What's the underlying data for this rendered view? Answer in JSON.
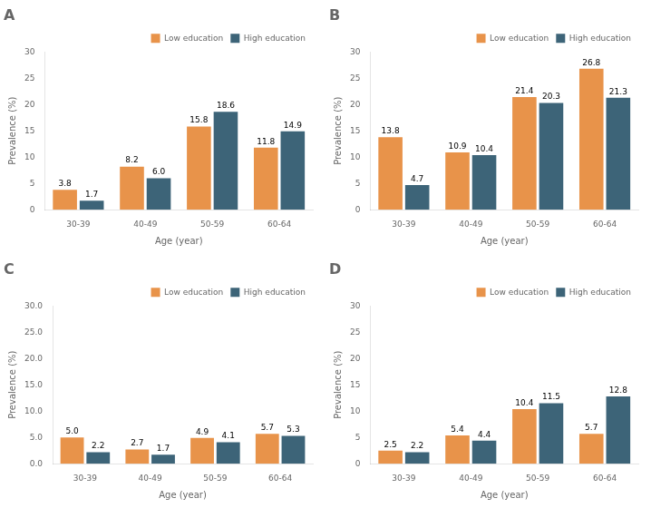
{
  "chart_data": [
    {
      "type": "bar",
      "title": "A",
      "categories": [
        "30-39",
        "40-49",
        "50-59",
        "60-64"
      ],
      "series": [
        {
          "name": "Low education",
          "color": "#E8934A",
          "values": [
            3.8,
            8.2,
            15.8,
            11.8
          ],
          "value_labels": [
            "3.8",
            "8.2",
            "15.8",
            "11.8"
          ]
        },
        {
          "name": "High education",
          "color": "#3D6478",
          "values": [
            1.7,
            6.0,
            18.6,
            14.9
          ],
          "value_labels": [
            "1.7",
            "6.0",
            "18.6",
            "14.9"
          ]
        }
      ],
      "xlabel": "Age (year)",
      "ylabel": "Prevalence (%)",
      "ylim": [
        0,
        30
      ],
      "yticks": [
        0,
        5,
        10,
        15,
        20,
        25,
        30
      ],
      "grid": false,
      "legend": "upper right",
      "data_labels": true
    },
    {
      "type": "bar",
      "title": "B",
      "categories": [
        "30-39",
        "40-49",
        "50-59",
        "60-64"
      ],
      "series": [
        {
          "name": "Low education",
          "color": "#E8934A",
          "values": [
            13.8,
            10.9,
            21.4,
            26.8
          ],
          "value_labels": [
            "13.8",
            "10.9",
            "21.4",
            "26.8"
          ]
        },
        {
          "name": "High education",
          "color": "#3D6478",
          "values": [
            4.7,
            10.4,
            20.3,
            21.3
          ],
          "value_labels": [
            "4.7",
            "10.4",
            "20.3",
            "21.3"
          ]
        }
      ],
      "xlabel": "Age (year)",
      "ylabel": "Prevalence (%)",
      "ylim": [
        0,
        30
      ],
      "yticks": [
        0,
        5,
        10,
        15,
        20,
        25,
        30
      ],
      "grid": false,
      "legend": "upper right",
      "data_labels": true
    },
    {
      "type": "bar",
      "title": "C",
      "categories": [
        "30-39",
        "40-49",
        "50-59",
        "60-64"
      ],
      "series": [
        {
          "name": "Low education",
          "color": "#E8934A",
          "values": [
            5.0,
            2.7,
            4.9,
            5.7
          ],
          "value_labels": [
            "5.0",
            "2.7",
            "4.9",
            "5.7"
          ]
        },
        {
          "name": "High education",
          "color": "#3D6478",
          "values": [
            2.2,
            1.7,
            4.1,
            5.3
          ],
          "value_labels": [
            "2.2",
            "1.7",
            "4.1",
            "5.3"
          ]
        }
      ],
      "xlabel": "Age (year)",
      "ylabel": "Prevalence (%)",
      "ylim": [
        0,
        30.0
      ],
      "yticks": [
        {
          "value": 0,
          "label": "0.0"
        },
        {
          "value": 5,
          "label": "5.0"
        },
        {
          "value": 10,
          "label": "10.0"
        },
        {
          "value": 15,
          "label": "15.0"
        },
        {
          "value": 20,
          "label": "20.0"
        },
        {
          "value": 25,
          "label": "25.0"
        },
        {
          "value": 30,
          "label": "30.0"
        }
      ],
      "grid": false,
      "legend": "upper right",
      "data_labels": true
    },
    {
      "type": "bar",
      "title": "D",
      "categories": [
        "30-39",
        "40-49",
        "50-59",
        "60-64"
      ],
      "series": [
        {
          "name": "Low education",
          "color": "#E8934A",
          "values": [
            2.5,
            5.4,
            10.4,
            5.7
          ],
          "value_labels": [
            "2.5",
            "5.4",
            "10.4",
            "5.7"
          ]
        },
        {
          "name": "High education",
          "color": "#3D6478",
          "values": [
            2.2,
            4.4,
            11.5,
            12.8
          ],
          "value_labels": [
            "2.2",
            "4.4",
            "11.5",
            "12.8"
          ]
        }
      ],
      "xlabel": "Age (year)",
      "ylabel": "Prevalence (%)",
      "ylim": [
        0,
        30
      ],
      "yticks": [
        0,
        5,
        10,
        15,
        20,
        25,
        30
      ],
      "grid": false,
      "legend": "upper right",
      "data_labels": true
    }
  ]
}
